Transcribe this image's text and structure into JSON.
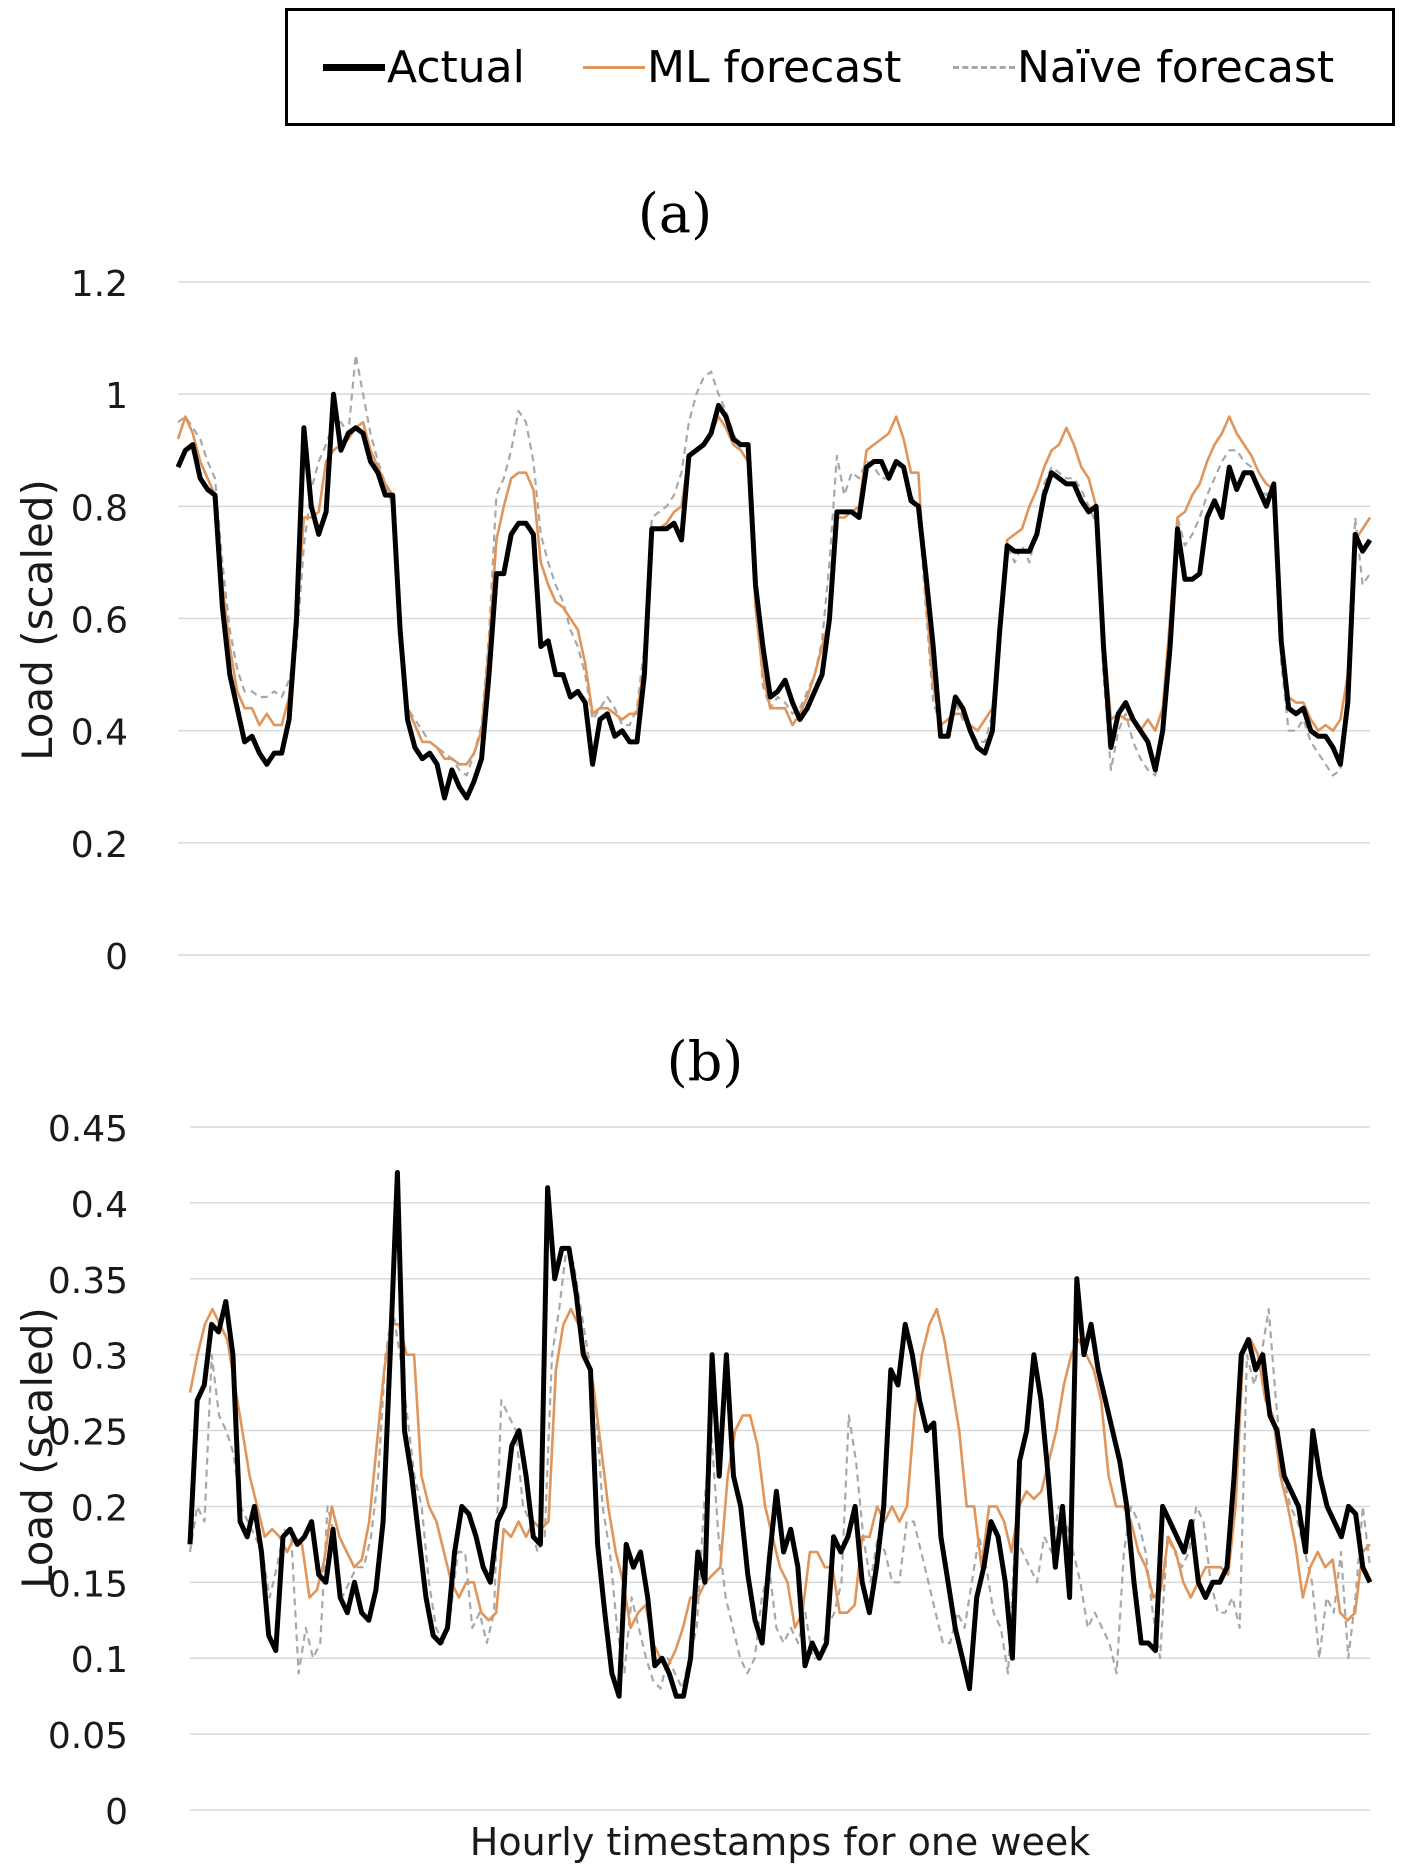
{
  "legend": {
    "actual": "Actual",
    "ml": "ML forecast",
    "naive": "Naïve forecast"
  },
  "colors": {
    "actual": "#000000",
    "ml": "#e0955a",
    "naive": "#a8a8a8",
    "grid": "#d9d9d9",
    "axis_text": "#1a1a1a"
  },
  "chart_data": [
    {
      "type": "line",
      "title": "(a)",
      "xlabel": "",
      "ylabel": "Load (scaled)",
      "ylim": [
        0,
        1.2
      ],
      "yticks": [
        0,
        0.2,
        0.4,
        0.6,
        0.8,
        1,
        1.2
      ],
      "ytick_labels": [
        "0",
        "0.2",
        "0.4",
        "0.6",
        "0.8",
        "1",
        "1.2"
      ],
      "grid": true,
      "legend": "top",
      "series": [
        {
          "name": "Actual",
          "values": [
            0.87,
            0.9,
            0.91,
            0.85,
            0.83,
            0.82,
            0.62,
            0.5,
            0.44,
            0.38,
            0.39,
            0.36,
            0.34,
            0.36,
            0.36,
            0.42,
            0.6,
            0.94,
            0.8,
            0.75,
            0.79,
            1.0,
            0.9,
            0.93,
            0.94,
            0.93,
            0.88,
            0.86,
            0.82,
            0.82,
            0.58,
            0.42,
            0.37,
            0.35,
            0.36,
            0.34,
            0.28,
            0.33,
            0.3,
            0.28,
            0.31,
            0.35,
            0.5,
            0.68,
            0.68,
            0.75,
            0.77,
            0.77,
            0.75,
            0.55,
            0.56,
            0.5,
            0.5,
            0.46,
            0.47,
            0.45,
            0.34,
            0.42,
            0.43,
            0.39,
            0.4,
            0.38,
            0.38,
            0.5,
            0.76,
            0.76,
            0.76,
            0.77,
            0.74,
            0.89,
            0.9,
            0.91,
            0.93,
            0.98,
            0.96,
            0.92,
            0.91,
            0.91,
            0.66,
            0.55,
            0.46,
            0.47,
            0.49,
            0.45,
            0.42,
            0.44,
            0.47,
            0.5,
            0.6,
            0.79,
            0.79,
            0.79,
            0.78,
            0.87,
            0.88,
            0.88,
            0.85,
            0.88,
            0.87,
            0.81,
            0.8,
            0.68,
            0.55,
            0.39,
            0.39,
            0.46,
            0.44,
            0.4,
            0.37,
            0.36,
            0.4,
            0.58,
            0.73,
            0.72,
            0.72,
            0.72,
            0.75,
            0.82,
            0.86,
            0.85,
            0.84,
            0.84,
            0.81,
            0.79,
            0.8,
            0.55,
            0.37,
            0.43,
            0.45,
            0.42,
            0.4,
            0.38,
            0.33,
            0.4,
            0.55,
            0.76,
            0.67,
            0.67,
            0.68,
            0.78,
            0.81,
            0.78,
            0.87,
            0.83,
            0.86,
            0.86,
            0.83,
            0.8,
            0.84,
            0.56,
            0.44,
            0.43,
            0.44,
            0.4,
            0.39,
            0.39,
            0.37,
            0.34,
            0.45,
            0.75,
            0.72,
            0.74
          ]
        },
        {
          "name": "ML forecast",
          "values": [
            0.92,
            0.96,
            0.93,
            0.88,
            0.85,
            0.82,
            0.66,
            0.55,
            0.47,
            0.44,
            0.44,
            0.41,
            0.43,
            0.41,
            0.41,
            0.46,
            0.6,
            0.78,
            0.78,
            0.79,
            0.88,
            0.9,
            0.91,
            0.92,
            0.94,
            0.95,
            0.9,
            0.87,
            0.84,
            0.82,
            0.57,
            0.44,
            0.41,
            0.38,
            0.38,
            0.37,
            0.35,
            0.35,
            0.34,
            0.34,
            0.36,
            0.4,
            0.55,
            0.74,
            0.8,
            0.85,
            0.86,
            0.86,
            0.83,
            0.7,
            0.66,
            0.63,
            0.62,
            0.6,
            0.58,
            0.52,
            0.43,
            0.44,
            0.44,
            0.43,
            0.42,
            0.43,
            0.43,
            0.52,
            0.76,
            0.76,
            0.77,
            0.79,
            0.8,
            0.89,
            0.9,
            0.91,
            0.93,
            0.96,
            0.94,
            0.91,
            0.9,
            0.88,
            0.62,
            0.5,
            0.44,
            0.44,
            0.44,
            0.41,
            0.43,
            0.46,
            0.5,
            0.55,
            0.6,
            0.78,
            0.78,
            0.79,
            0.8,
            0.9,
            0.91,
            0.92,
            0.93,
            0.96,
            0.92,
            0.86,
            0.86,
            0.64,
            0.48,
            0.41,
            0.42,
            0.43,
            0.43,
            0.41,
            0.4,
            0.42,
            0.44,
            0.56,
            0.74,
            0.75,
            0.76,
            0.8,
            0.83,
            0.87,
            0.9,
            0.91,
            0.94,
            0.91,
            0.87,
            0.85,
            0.8,
            0.57,
            0.42,
            0.43,
            0.42,
            0.42,
            0.4,
            0.42,
            0.4,
            0.44,
            0.6,
            0.78,
            0.79,
            0.82,
            0.84,
            0.88,
            0.91,
            0.93,
            0.96,
            0.93,
            0.91,
            0.89,
            0.86,
            0.84,
            0.83,
            0.57,
            0.46,
            0.45,
            0.45,
            0.42,
            0.4,
            0.41,
            0.4,
            0.42,
            0.5,
            0.74,
            0.76,
            0.78
          ]
        },
        {
          "name": "Naïve forecast",
          "values": [
            0.95,
            0.96,
            0.94,
            0.92,
            0.88,
            0.85,
            0.7,
            0.58,
            0.51,
            0.47,
            0.47,
            0.46,
            0.46,
            0.47,
            0.46,
            0.49,
            0.55,
            0.73,
            0.83,
            0.88,
            0.91,
            0.95,
            0.95,
            0.93,
            1.07,
            1.0,
            0.93,
            0.88,
            0.84,
            0.8,
            0.58,
            0.44,
            0.42,
            0.4,
            0.38,
            0.37,
            0.36,
            0.35,
            0.33,
            0.32,
            0.36,
            0.41,
            0.57,
            0.82,
            0.85,
            0.9,
            0.97,
            0.95,
            0.88,
            0.75,
            0.7,
            0.66,
            0.63,
            0.58,
            0.55,
            0.5,
            0.42,
            0.44,
            0.46,
            0.44,
            0.41,
            0.41,
            0.44,
            0.55,
            0.78,
            0.79,
            0.8,
            0.82,
            0.86,
            0.95,
            1.0,
            1.03,
            1.04,
            1.0,
            0.97,
            0.93,
            0.9,
            0.88,
            0.65,
            0.48,
            0.44,
            0.46,
            0.45,
            0.43,
            0.44,
            0.47,
            0.5,
            0.56,
            0.7,
            0.89,
            0.82,
            0.86,
            0.85,
            0.88,
            0.87,
            0.85,
            0.85,
            0.88,
            0.86,
            0.82,
            0.8,
            0.62,
            0.45,
            0.41,
            0.42,
            0.45,
            0.42,
            0.4,
            0.38,
            0.38,
            0.43,
            0.57,
            0.73,
            0.7,
            0.73,
            0.7,
            0.76,
            0.84,
            0.87,
            0.86,
            0.85,
            0.85,
            0.83,
            0.8,
            0.77,
            0.5,
            0.33,
            0.4,
            0.43,
            0.38,
            0.35,
            0.33,
            0.32,
            0.39,
            0.6,
            0.78,
            0.73,
            0.75,
            0.78,
            0.82,
            0.85,
            0.88,
            0.9,
            0.9,
            0.88,
            0.87,
            0.83,
            0.82,
            0.84,
            0.52,
            0.4,
            0.4,
            0.42,
            0.38,
            0.36,
            0.34,
            0.32,
            0.33,
            0.45,
            0.78,
            0.66,
            0.68
          ]
        }
      ]
    },
    {
      "type": "line",
      "title": "(b)",
      "xlabel": "Hourly timestamps for one week",
      "ylabel": "Load (scaled)",
      "ylim": [
        0,
        0.45
      ],
      "yticks": [
        0,
        0.05,
        0.1,
        0.15,
        0.2,
        0.25,
        0.3,
        0.35,
        0.4,
        0.45
      ],
      "ytick_labels": [
        "0",
        "0.05",
        "0.1",
        "0.15",
        "0.2",
        "0.25",
        "0.3",
        "0.35",
        "0.4",
        "0.45"
      ],
      "grid": true,
      "legend": "top",
      "series": [
        {
          "name": "Actual",
          "values": [
            0.175,
            0.27,
            0.28,
            0.32,
            0.315,
            0.335,
            0.3,
            0.19,
            0.18,
            0.2,
            0.17,
            0.115,
            0.105,
            0.18,
            0.185,
            0.175,
            0.18,
            0.19,
            0.155,
            0.15,
            0.185,
            0.14,
            0.13,
            0.15,
            0.13,
            0.125,
            0.145,
            0.19,
            0.3,
            0.42,
            0.25,
            0.22,
            0.18,
            0.14,
            0.115,
            0.11,
            0.12,
            0.17,
            0.2,
            0.195,
            0.18,
            0.16,
            0.15,
            0.19,
            0.2,
            0.24,
            0.25,
            0.22,
            0.18,
            0.175,
            0.41,
            0.35,
            0.37,
            0.37,
            0.34,
            0.3,
            0.29,
            0.175,
            0.13,
            0.09,
            0.075,
            0.175,
            0.16,
            0.17,
            0.14,
            0.095,
            0.1,
            0.09,
            0.075,
            0.075,
            0.1,
            0.17,
            0.15,
            0.3,
            0.22,
            0.3,
            0.22,
            0.2,
            0.155,
            0.125,
            0.11,
            0.165,
            0.21,
            0.17,
            0.185,
            0.16,
            0.095,
            0.11,
            0.1,
            0.11,
            0.18,
            0.17,
            0.18,
            0.2,
            0.15,
            0.13,
            0.16,
            0.2,
            0.29,
            0.28,
            0.32,
            0.3,
            0.27,
            0.25,
            0.255,
            0.18,
            0.15,
            0.12,
            0.1,
            0.08,
            0.14,
            0.16,
            0.19,
            0.18,
            0.15,
            0.1,
            0.23,
            0.25,
            0.3,
            0.27,
            0.22,
            0.16,
            0.2,
            0.14,
            0.35,
            0.3,
            0.32,
            0.29,
            0.27,
            0.25,
            0.23,
            0.2,
            0.15,
            0.11,
            0.11,
            0.105,
            0.2,
            0.19,
            0.18,
            0.17,
            0.19,
            0.15,
            0.14,
            0.15,
            0.15,
            0.16,
            0.22,
            0.3,
            0.31,
            0.29,
            0.3,
            0.26,
            0.25,
            0.22,
            0.21,
            0.2,
            0.17,
            0.25,
            0.22,
            0.2,
            0.19,
            0.18,
            0.2,
            0.195,
            0.16,
            0.15
          ]
        },
        {
          "name": "ML forecast",
          "values": [
            0.275,
            0.3,
            0.32,
            0.33,
            0.32,
            0.31,
            0.28,
            0.25,
            0.22,
            0.2,
            0.18,
            0.185,
            0.18,
            0.17,
            0.18,
            0.175,
            0.14,
            0.145,
            0.165,
            0.2,
            0.18,
            0.17,
            0.16,
            0.165,
            0.19,
            0.24,
            0.29,
            0.32,
            0.32,
            0.3,
            0.3,
            0.22,
            0.2,
            0.19,
            0.17,
            0.15,
            0.14,
            0.15,
            0.15,
            0.13,
            0.125,
            0.13,
            0.185,
            0.18,
            0.19,
            0.18,
            0.19,
            0.185,
            0.19,
            0.29,
            0.32,
            0.33,
            0.32,
            0.3,
            0.28,
            0.24,
            0.2,
            0.17,
            0.15,
            0.12,
            0.13,
            0.135,
            0.11,
            0.1,
            0.095,
            0.105,
            0.12,
            0.14,
            0.14,
            0.15,
            0.155,
            0.16,
            0.22,
            0.25,
            0.26,
            0.26,
            0.24,
            0.2,
            0.18,
            0.16,
            0.15,
            0.12,
            0.13,
            0.17,
            0.17,
            0.16,
            0.16,
            0.13,
            0.13,
            0.135,
            0.18,
            0.18,
            0.2,
            0.19,
            0.2,
            0.19,
            0.2,
            0.26,
            0.3,
            0.32,
            0.33,
            0.31,
            0.28,
            0.25,
            0.2,
            0.2,
            0.16,
            0.2,
            0.2,
            0.19,
            0.17,
            0.2,
            0.21,
            0.205,
            0.21,
            0.23,
            0.25,
            0.28,
            0.3,
            0.31,
            0.3,
            0.29,
            0.27,
            0.22,
            0.2,
            0.2,
            0.19,
            0.17,
            0.16,
            0.14,
            0.145,
            0.18,
            0.17,
            0.15,
            0.14,
            0.15,
            0.16,
            0.16,
            0.16,
            0.155,
            0.2,
            0.3,
            0.31,
            0.3,
            0.27,
            0.26,
            0.22,
            0.2,
            0.175,
            0.14,
            0.16,
            0.17,
            0.16,
            0.165,
            0.13,
            0.125,
            0.13,
            0.17,
            0.175
          ]
        },
        {
          "name": "Naïve forecast",
          "values": [
            0.17,
            0.2,
            0.19,
            0.3,
            0.26,
            0.25,
            0.235,
            0.2,
            0.19,
            0.18,
            0.17,
            0.14,
            0.16,
            0.185,
            0.18,
            0.09,
            0.12,
            0.1,
            0.11,
            0.2,
            0.18,
            0.14,
            0.15,
            0.16,
            0.16,
            0.18,
            0.22,
            0.3,
            0.33,
            0.3,
            0.26,
            0.22,
            0.2,
            0.15,
            0.12,
            0.11,
            0.13,
            0.17,
            0.17,
            0.12,
            0.13,
            0.11,
            0.13,
            0.27,
            0.26,
            0.25,
            0.2,
            0.19,
            0.17,
            0.18,
            0.3,
            0.33,
            0.37,
            0.36,
            0.33,
            0.3,
            0.27,
            0.2,
            0.17,
            0.12,
            0.09,
            0.14,
            0.12,
            0.1,
            0.085,
            0.08,
            0.1,
            0.09,
            0.08,
            0.1,
            0.12,
            0.2,
            0.25,
            0.18,
            0.14,
            0.12,
            0.1,
            0.09,
            0.1,
            0.14,
            0.16,
            0.12,
            0.11,
            0.12,
            0.11,
            0.13,
            0.1,
            0.1,
            0.12,
            0.13,
            0.15,
            0.26,
            0.23,
            0.18,
            0.15,
            0.18,
            0.17,
            0.15,
            0.15,
            0.19,
            0.19,
            0.17,
            0.15,
            0.13,
            0.11,
            0.11,
            0.13,
            0.12,
            0.15,
            0.18,
            0.16,
            0.13,
            0.12,
            0.09,
            0.18,
            0.17,
            0.16,
            0.15,
            0.18,
            0.17,
            0.2,
            0.19,
            0.17,
            0.15,
            0.12,
            0.13,
            0.12,
            0.11,
            0.09,
            0.17,
            0.2,
            0.19,
            0.17,
            0.13,
            0.1,
            0.18,
            0.17,
            0.16,
            0.17,
            0.2,
            0.19,
            0.15,
            0.13,
            0.13,
            0.14,
            0.12,
            0.3,
            0.28,
            0.3,
            0.33,
            0.27,
            0.22,
            0.2,
            0.19,
            0.17,
            0.15,
            0.1,
            0.14,
            0.13,
            0.17,
            0.1,
            0.14,
            0.2,
            0.16
          ]
        }
      ]
    }
  ]
}
